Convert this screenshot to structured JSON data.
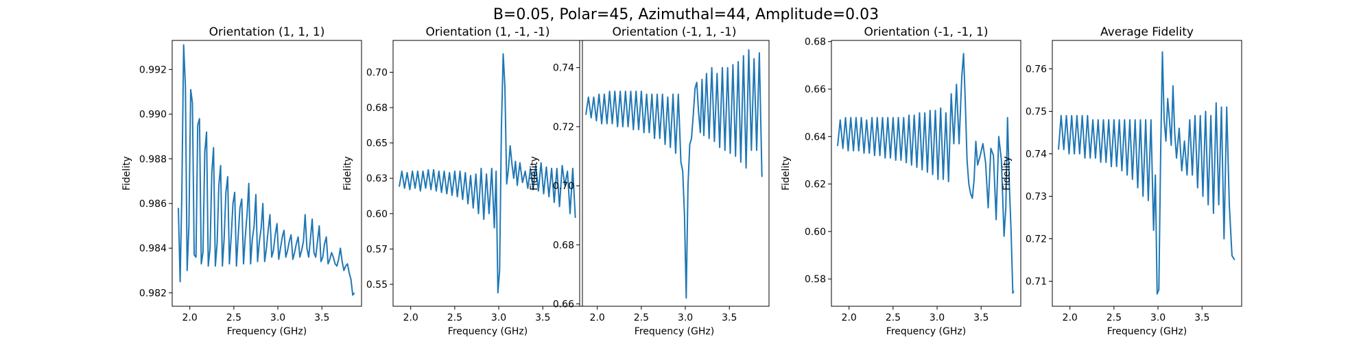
{
  "figure": {
    "suptitle": "B=0.05, Polar=45, Azimuthal=44, Amplitude=0.03"
  },
  "chart_data": [
    {
      "type": "line",
      "title": "Orientation (1, 1, 1)",
      "xlabel": "Frequency (GHz)",
      "ylabel": "Fidelity",
      "xlim": [
        1.8,
        3.95
      ],
      "ylim": [
        0.9814,
        0.9933
      ],
      "xticks": [
        2.0,
        2.5,
        3.0,
        3.5
      ],
      "yticks": [
        0.982,
        0.984,
        0.986,
        0.988,
        0.99,
        0.992
      ],
      "line_color": "#1f77b4",
      "x": [
        1.87,
        1.89,
        1.91,
        1.93,
        1.95,
        1.97,
        1.99,
        2.01,
        2.03,
        2.05,
        2.07,
        2.09,
        2.11,
        2.13,
        2.15,
        2.17,
        2.19,
        2.21,
        2.23,
        2.25,
        2.27,
        2.29,
        2.31,
        2.33,
        2.35,
        2.37,
        2.39,
        2.41,
        2.43,
        2.45,
        2.47,
        2.49,
        2.51,
        2.53,
        2.55,
        2.57,
        2.59,
        2.61,
        2.63,
        2.65,
        2.67,
        2.69,
        2.71,
        2.73,
        2.75,
        2.77,
        2.79,
        2.81,
        2.83,
        2.85,
        2.87,
        2.89,
        2.91,
        2.93,
        2.95,
        2.97,
        2.99,
        3.01,
        3.03,
        3.05,
        3.07,
        3.09,
        3.11,
        3.13,
        3.15,
        3.17,
        3.19,
        3.21,
        3.23,
        3.25,
        3.27,
        3.29,
        3.31,
        3.33,
        3.35,
        3.37,
        3.39,
        3.41,
        3.43,
        3.45,
        3.47,
        3.49,
        3.51,
        3.53,
        3.55,
        3.57,
        3.59,
        3.61,
        3.63,
        3.65,
        3.67,
        3.69,
        3.71,
        3.73,
        3.75,
        3.77,
        3.79,
        3.81,
        3.83,
        3.85,
        3.87
      ],
      "y": [
        0.9858,
        0.9825,
        0.9865,
        0.9931,
        0.9912,
        0.983,
        0.985,
        0.9911,
        0.9905,
        0.9837,
        0.9836,
        0.9895,
        0.9898,
        0.9833,
        0.9838,
        0.9883,
        0.9892,
        0.9832,
        0.984,
        0.9874,
        0.9885,
        0.9832,
        0.9842,
        0.9868,
        0.9877,
        0.9832,
        0.9844,
        0.9865,
        0.9872,
        0.9833,
        0.9845,
        0.986,
        0.9865,
        0.9832,
        0.9846,
        0.9858,
        0.9862,
        0.9833,
        0.9845,
        0.9855,
        0.9869,
        0.9833,
        0.9844,
        0.985,
        0.9864,
        0.9834,
        0.9843,
        0.9849,
        0.986,
        0.9834,
        0.984,
        0.9848,
        0.9855,
        0.9836,
        0.9839,
        0.9846,
        0.9851,
        0.9835,
        0.984,
        0.9845,
        0.9848,
        0.9836,
        0.9839,
        0.9843,
        0.9846,
        0.9835,
        0.9838,
        0.9842,
        0.9845,
        0.9836,
        0.9839,
        0.9843,
        0.9855,
        0.984,
        0.9836,
        0.9844,
        0.9853,
        0.9838,
        0.9836,
        0.9843,
        0.985,
        0.9834,
        0.9836,
        0.9842,
        0.9845,
        0.9833,
        0.9835,
        0.9838,
        0.9836,
        0.9833,
        0.9832,
        0.9835,
        0.984,
        0.9834,
        0.983,
        0.9832,
        0.9833,
        0.9829,
        0.9826,
        0.9819,
        0.982
      ]
    },
    {
      "type": "line",
      "title": "Orientation (1, -1, -1)",
      "xlabel": "Frequency (GHz)",
      "ylabel": "Fidelity",
      "xlim": [
        1.8,
        3.95
      ],
      "ylim": [
        0.5345,
        0.7225
      ],
      "xticks": [
        2.0,
        2.5,
        3.0,
        3.5
      ],
      "yticks": [
        0.55,
        0.575,
        0.6,
        0.625,
        0.65,
        0.675,
        0.7
      ],
      "line_color": "#1f77b4",
      "x": [
        1.87,
        1.9,
        1.93,
        1.96,
        1.99,
        2.02,
        2.05,
        2.08,
        2.11,
        2.14,
        2.17,
        2.2,
        2.23,
        2.26,
        2.29,
        2.32,
        2.35,
        2.38,
        2.41,
        2.44,
        2.47,
        2.5,
        2.53,
        2.56,
        2.59,
        2.62,
        2.65,
        2.68,
        2.71,
        2.74,
        2.77,
        2.8,
        2.83,
        2.86,
        2.89,
        2.92,
        2.95,
        2.97,
        2.99,
        3.01,
        3.03,
        3.05,
        3.07,
        3.09,
        3.11,
        3.13,
        3.15,
        3.17,
        3.19,
        3.21,
        3.24,
        3.27,
        3.3,
        3.33,
        3.36,
        3.39,
        3.42,
        3.45,
        3.48,
        3.51,
        3.54,
        3.57,
        3.6,
        3.63,
        3.66,
        3.69,
        3.72,
        3.75,
        3.78,
        3.81,
        3.84,
        3.87
      ],
      "y": [
        0.619,
        0.63,
        0.618,
        0.629,
        0.617,
        0.63,
        0.618,
        0.63,
        0.616,
        0.63,
        0.618,
        0.631,
        0.617,
        0.631,
        0.616,
        0.63,
        0.615,
        0.63,
        0.614,
        0.629,
        0.613,
        0.63,
        0.612,
        0.63,
        0.61,
        0.629,
        0.607,
        0.627,
        0.604,
        0.628,
        0.6,
        0.632,
        0.596,
        0.628,
        0.6,
        0.632,
        0.59,
        0.63,
        0.544,
        0.56,
        0.66,
        0.713,
        0.69,
        0.621,
        0.632,
        0.648,
        0.635,
        0.625,
        0.637,
        0.62,
        0.636,
        0.622,
        0.63,
        0.618,
        0.632,
        0.617,
        0.634,
        0.616,
        0.636,
        0.614,
        0.633,
        0.612,
        0.632,
        0.608,
        0.632,
        0.605,
        0.634,
        0.62,
        0.63,
        0.6,
        0.632,
        0.597
      ]
    },
    {
      "type": "line",
      "title": "Orientation (-1, 1, -1)",
      "xlabel": "Frequency (GHz)",
      "ylabel": "Fidelity",
      "xlim": [
        1.8,
        3.95
      ],
      "ylim": [
        0.6592,
        0.7492
      ],
      "xticks": [
        2.0,
        2.5,
        3.0,
        3.5
      ],
      "yticks": [
        0.66,
        0.68,
        0.7,
        0.72,
        0.74
      ],
      "line_color": "#1f77b4",
      "x": [
        1.87,
        1.9,
        1.93,
        1.96,
        1.99,
        2.02,
        2.05,
        2.08,
        2.11,
        2.14,
        2.17,
        2.2,
        2.23,
        2.26,
        2.29,
        2.32,
        2.35,
        2.38,
        2.41,
        2.44,
        2.47,
        2.5,
        2.53,
        2.56,
        2.59,
        2.62,
        2.65,
        2.68,
        2.71,
        2.74,
        2.77,
        2.8,
        2.83,
        2.86,
        2.89,
        2.92,
        2.95,
        2.97,
        2.99,
        3.01,
        3.03,
        3.05,
        3.07,
        3.09,
        3.11,
        3.13,
        3.15,
        3.17,
        3.19,
        3.21,
        3.24,
        3.27,
        3.3,
        3.33,
        3.36,
        3.39,
        3.42,
        3.45,
        3.48,
        3.51,
        3.54,
        3.57,
        3.6,
        3.63,
        3.66,
        3.69,
        3.72,
        3.75,
        3.78,
        3.81,
        3.84,
        3.87
      ],
      "y": [
        0.724,
        0.73,
        0.723,
        0.73,
        0.722,
        0.731,
        0.721,
        0.731,
        0.721,
        0.732,
        0.721,
        0.732,
        0.72,
        0.732,
        0.72,
        0.732,
        0.72,
        0.732,
        0.719,
        0.732,
        0.719,
        0.732,
        0.718,
        0.731,
        0.718,
        0.731,
        0.716,
        0.731,
        0.716,
        0.731,
        0.714,
        0.73,
        0.713,
        0.731,
        0.711,
        0.731,
        0.708,
        0.705,
        0.69,
        0.662,
        0.7,
        0.714,
        0.716,
        0.724,
        0.733,
        0.735,
        0.725,
        0.718,
        0.736,
        0.717,
        0.738,
        0.716,
        0.74,
        0.715,
        0.738,
        0.713,
        0.74,
        0.712,
        0.74,
        0.711,
        0.741,
        0.71,
        0.742,
        0.708,
        0.744,
        0.706,
        0.746,
        0.712,
        0.743,
        0.712,
        0.745,
        0.703
      ]
    },
    {
      "type": "line",
      "title": "Orientation (-1, -1, 1)",
      "xlabel": "Frequency (GHz)",
      "ylabel": "Fidelity",
      "xlim": [
        1.8,
        3.95
      ],
      "ylim": [
        0.5685,
        0.6805
      ],
      "xticks": [
        2.0,
        2.5,
        3.0,
        3.5
      ],
      "yticks": [
        0.58,
        0.6,
        0.62,
        0.64,
        0.66,
        0.68
      ],
      "line_color": "#1f77b4",
      "x": [
        1.87,
        1.9,
        1.93,
        1.96,
        1.99,
        2.02,
        2.05,
        2.08,
        2.11,
        2.14,
        2.17,
        2.2,
        2.23,
        2.26,
        2.29,
        2.32,
        2.35,
        2.38,
        2.41,
        2.44,
        2.47,
        2.5,
        2.53,
        2.56,
        2.59,
        2.62,
        2.65,
        2.68,
        2.71,
        2.74,
        2.77,
        2.8,
        2.83,
        2.86,
        2.89,
        2.92,
        2.95,
        2.98,
        3.01,
        3.04,
        3.07,
        3.1,
        3.13,
        3.16,
        3.19,
        3.22,
        3.25,
        3.28,
        3.3,
        3.32,
        3.34,
        3.36,
        3.38,
        3.4,
        3.42,
        3.44,
        3.46,
        3.49,
        3.52,
        3.55,
        3.58,
        3.61,
        3.64,
        3.67,
        3.7,
        3.73,
        3.76,
        3.78,
        3.8,
        3.82,
        3.84,
        3.86,
        3.87
      ],
      "y": [
        0.636,
        0.647,
        0.635,
        0.648,
        0.634,
        0.648,
        0.634,
        0.648,
        0.634,
        0.648,
        0.633,
        0.647,
        0.633,
        0.648,
        0.632,
        0.648,
        0.632,
        0.648,
        0.631,
        0.648,
        0.631,
        0.648,
        0.63,
        0.648,
        0.63,
        0.648,
        0.629,
        0.649,
        0.628,
        0.649,
        0.627,
        0.65,
        0.626,
        0.65,
        0.625,
        0.651,
        0.624,
        0.651,
        0.622,
        0.652,
        0.622,
        0.65,
        0.621,
        0.658,
        0.637,
        0.662,
        0.637,
        0.665,
        0.675,
        0.655,
        0.63,
        0.62,
        0.616,
        0.614,
        0.622,
        0.638,
        0.628,
        0.632,
        0.637,
        0.629,
        0.61,
        0.635,
        0.632,
        0.605,
        0.64,
        0.63,
        0.598,
        0.61,
        0.648,
        0.62,
        0.6,
        0.574,
        0.575
      ]
    },
    {
      "type": "line",
      "title": "Average Fidelity",
      "xlabel": "Frequency (GHz)",
      "ylabel": "Fidelity",
      "xlim": [
        1.8,
        3.95
      ],
      "ylim": [
        0.7041,
        0.7667
      ],
      "xticks": [
        2.0,
        2.5,
        3.0,
        3.5
      ],
      "yticks": [
        0.71,
        0.72,
        0.73,
        0.74,
        0.75,
        0.76
      ],
      "line_color": "#1f77b4",
      "x": [
        1.87,
        1.9,
        1.93,
        1.96,
        1.99,
        2.02,
        2.05,
        2.08,
        2.11,
        2.14,
        2.17,
        2.2,
        2.23,
        2.26,
        2.29,
        2.32,
        2.35,
        2.38,
        2.41,
        2.44,
        2.47,
        2.5,
        2.53,
        2.56,
        2.59,
        2.62,
        2.65,
        2.68,
        2.71,
        2.74,
        2.77,
        2.8,
        2.83,
        2.86,
        2.89,
        2.92,
        2.95,
        2.97,
        2.99,
        3.01,
        3.03,
        3.05,
        3.07,
        3.09,
        3.11,
        3.13,
        3.15,
        3.17,
        3.19,
        3.21,
        3.24,
        3.27,
        3.3,
        3.33,
        3.36,
        3.39,
        3.42,
        3.45,
        3.48,
        3.51,
        3.54,
        3.57,
        3.6,
        3.63,
        3.66,
        3.69,
        3.72,
        3.75,
        3.78,
        3.81,
        3.84,
        3.87
      ],
      "y": [
        0.741,
        0.749,
        0.741,
        0.749,
        0.74,
        0.749,
        0.74,
        0.749,
        0.74,
        0.749,
        0.739,
        0.749,
        0.739,
        0.748,
        0.739,
        0.748,
        0.738,
        0.748,
        0.738,
        0.748,
        0.737,
        0.748,
        0.737,
        0.748,
        0.736,
        0.748,
        0.735,
        0.748,
        0.734,
        0.748,
        0.732,
        0.748,
        0.73,
        0.748,
        0.729,
        0.748,
        0.722,
        0.735,
        0.707,
        0.708,
        0.74,
        0.764,
        0.748,
        0.743,
        0.753,
        0.748,
        0.742,
        0.756,
        0.745,
        0.739,
        0.746,
        0.736,
        0.743,
        0.735,
        0.748,
        0.735,
        0.749,
        0.732,
        0.749,
        0.73,
        0.75,
        0.728,
        0.749,
        0.726,
        0.752,
        0.728,
        0.751,
        0.72,
        0.751,
        0.728,
        0.716,
        0.715
      ]
    }
  ]
}
